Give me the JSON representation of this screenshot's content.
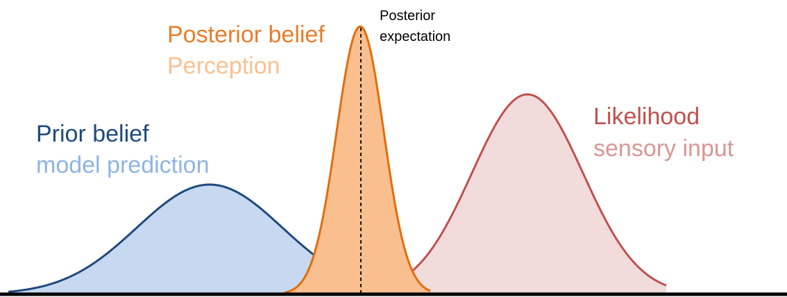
{
  "prior": {
    "title": "Prior belief",
    "subtitle": "model prediction",
    "title_color": "#1f497d",
    "subtitle_color": "#8eb4e3",
    "fill_color": "#c6d9f1",
    "stroke_color": "#1f497d"
  },
  "posterior": {
    "title": "Posterior belief",
    "subtitle": "Perception",
    "title_color": "#e87d2a",
    "subtitle_color": "#fac090",
    "fill_color": "#f9bf8f",
    "stroke_color": "#e46c0a",
    "expectation_label_line1": "Posterior",
    "expectation_label_line2": "expectation"
  },
  "likelihood": {
    "title": "Likelihood",
    "subtitle": "sensory input",
    "title_color": "#c0504d",
    "subtitle_color": "#d99694",
    "fill_color": "#f2dcdb",
    "stroke_color": "#c0504d"
  },
  "baseline_color": "#000000"
}
